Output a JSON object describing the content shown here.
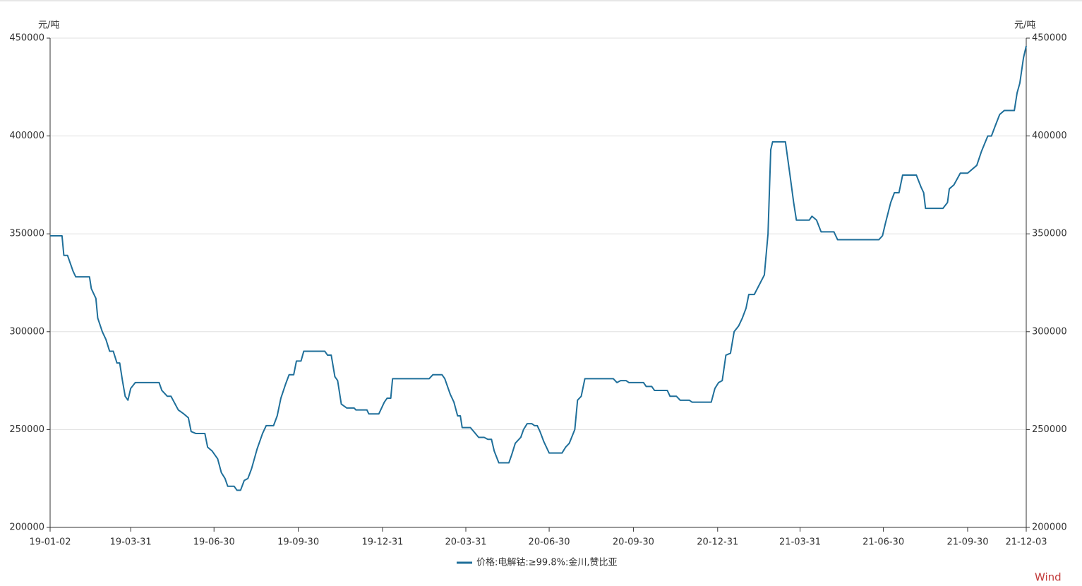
{
  "chart_data": {
    "type": "line",
    "y_axis_label": "元/吨",
    "y2_axis_label": "元/吨",
    "watermark": "Wind",
    "xlim": [
      "19-01-02",
      "21-12-03"
    ],
    "xticks": [
      "19-01-02",
      "19-03-31",
      "19-06-30",
      "19-09-30",
      "19-12-31",
      "20-03-31",
      "20-06-30",
      "20-09-30",
      "20-12-31",
      "21-03-31",
      "21-06-30",
      "21-09-30",
      "21-12-03"
    ],
    "ylim": [
      200000,
      450000
    ],
    "yticks": [
      200000,
      250000,
      300000,
      350000,
      400000,
      450000
    ],
    "y2lim": [
      200000,
      450000
    ],
    "y2ticks": [
      200000,
      250000,
      300000,
      350000,
      400000,
      450000
    ],
    "grid": true,
    "legend": "bottom",
    "x": [
      "19-01-02",
      "19-01-15",
      "19-01-17",
      "19-01-21",
      "19-01-27",
      "19-01-30",
      "19-02-14",
      "19-02-16",
      "19-02-21",
      "19-02-23",
      "19-02-28",
      "19-03-04",
      "19-03-08",
      "19-03-12",
      "19-03-16",
      "19-03-19",
      "19-03-22",
      "19-03-25",
      "19-03-28",
      "19-03-31",
      "19-04-05",
      "19-05-01",
      "19-05-04",
      "19-05-10",
      "19-05-14",
      "19-05-22",
      "19-05-28",
      "19-06-02",
      "19-06-05",
      "19-06-10",
      "19-06-20",
      "19-06-23",
      "19-06-28",
      "19-07-04",
      "19-07-08",
      "19-07-12",
      "19-07-15",
      "19-07-22",
      "19-07-25",
      "19-07-29",
      "19-08-02",
      "19-08-06",
      "19-08-10",
      "19-08-16",
      "19-08-22",
      "19-08-26",
      "19-09-03",
      "19-09-07",
      "19-09-11",
      "19-09-16",
      "19-09-20",
      "19-09-25",
      "19-09-28",
      "19-10-03",
      "19-10-06",
      "19-10-29",
      "19-11-01",
      "19-11-05",
      "19-11-09",
      "19-11-12",
      "19-11-16",
      "19-11-22",
      "19-11-30",
      "19-12-02",
      "19-12-14",
      "19-12-16",
      "19-12-27",
      "20-01-02",
      "20-01-05",
      "20-01-09",
      "20-01-11",
      "20-02-20",
      "20-02-24",
      "20-03-05",
      "20-03-08",
      "20-03-14",
      "20-03-18",
      "20-03-22",
      "20-03-25",
      "20-03-27",
      "20-04-05",
      "20-04-14",
      "20-04-20",
      "20-04-24",
      "20-04-28",
      "20-05-01",
      "20-05-06",
      "20-05-17",
      "20-05-20",
      "20-05-24",
      "20-05-30",
      "20-06-02",
      "20-06-06",
      "20-06-11",
      "20-06-14",
      "20-06-17",
      "20-06-20",
      "20-06-24",
      "20-06-28",
      "20-06-30",
      "20-07-14",
      "20-07-18",
      "20-07-22",
      "20-07-28",
      "20-07-31",
      "20-08-04",
      "20-08-08",
      "20-09-08",
      "20-09-12",
      "20-09-16",
      "20-09-22",
      "20-09-25",
      "20-10-11",
      "20-10-14",
      "20-10-20",
      "20-10-23",
      "20-11-06",
      "20-11-09",
      "20-11-16",
      "20-11-20",
      "20-11-30",
      "20-12-03",
      "20-12-24",
      "20-12-28",
      "21-01-01",
      "21-01-05",
      "21-01-09",
      "21-01-14",
      "21-01-18",
      "21-01-23",
      "21-01-27",
      "21-01-31",
      "21-02-03",
      "21-02-09",
      "21-02-20",
      "21-02-24",
      "21-02-27",
      "21-03-01",
      "21-03-15",
      "21-03-20",
      "21-03-24",
      "21-03-27",
      "21-04-10",
      "21-04-13",
      "21-04-18",
      "21-04-23",
      "21-05-07",
      "21-05-11",
      "21-06-25",
      "21-06-29",
      "21-07-02",
      "21-07-08",
      "21-07-12",
      "21-07-17",
      "21-07-21",
      "21-08-05",
      "21-08-10",
      "21-08-13",
      "21-08-15",
      "21-09-03",
      "21-09-08",
      "21-09-10",
      "21-09-15",
      "21-09-22",
      "21-09-30",
      "21-10-10",
      "21-10-15",
      "21-10-22",
      "21-10-26",
      "21-10-30",
      "21-11-04",
      "21-11-09",
      "21-11-20",
      "21-11-23",
      "21-11-26",
      "21-11-30",
      "21-12-03"
    ],
    "series": [
      {
        "name": "价格:电解钴:≥99.8%:金川,赞比亚",
        "color": "#1f6f9a",
        "values": [
          349000,
          349000,
          339000,
          339000,
          331000,
          328000,
          328000,
          322000,
          317000,
          307000,
          300000,
          296000,
          290000,
          290000,
          284000,
          284000,
          275000,
          267000,
          265000,
          271000,
          274000,
          274000,
          270000,
          267000,
          267000,
          260000,
          258000,
          256000,
          249000,
          248000,
          248000,
          241000,
          239000,
          235000,
          228000,
          225000,
          221000,
          221000,
          219000,
          219000,
          224000,
          225000,
          230000,
          240000,
          248000,
          252000,
          252000,
          257000,
          266000,
          273000,
          278000,
          278000,
          285000,
          285000,
          290000,
          290000,
          288000,
          288000,
          277000,
          275000,
          263000,
          261000,
          261000,
          260000,
          260000,
          258000,
          258000,
          264000,
          266000,
          266000,
          276000,
          276000,
          278000,
          278000,
          276000,
          268000,
          264000,
          257000,
          257000,
          251000,
          251000,
          246000,
          246000,
          245000,
          245000,
          239000,
          233000,
          233000,
          237000,
          243000,
          246000,
          250000,
          253000,
          253000,
          252000,
          252000,
          249000,
          244000,
          240000,
          238000,
          238000,
          241000,
          243000,
          250000,
          265000,
          267000,
          276000,
          276000,
          274000,
          275000,
          275000,
          274000,
          274000,
          272000,
          272000,
          270000,
          270000,
          267000,
          267000,
          265000,
          265000,
          264000,
          264000,
          271000,
          274000,
          275000,
          288000,
          289000,
          300000,
          303000,
          307000,
          312000,
          319000,
          319000,
          329000,
          350000,
          393000,
          397000,
          397000,
          380000,
          366000,
          357000,
          357000,
          359000,
          357000,
          351000,
          351000,
          347000,
          347000,
          349000,
          355000,
          366000,
          371000,
          371000,
          380000,
          380000,
          374000,
          371000,
          363000,
          363000,
          366000,
          373000,
          375000,
          381000,
          381000,
          385000,
          392000,
          400000,
          400000,
          405000,
          411000,
          413000,
          413000,
          422000,
          427000,
          440000,
          446000
        ]
      }
    ]
  }
}
